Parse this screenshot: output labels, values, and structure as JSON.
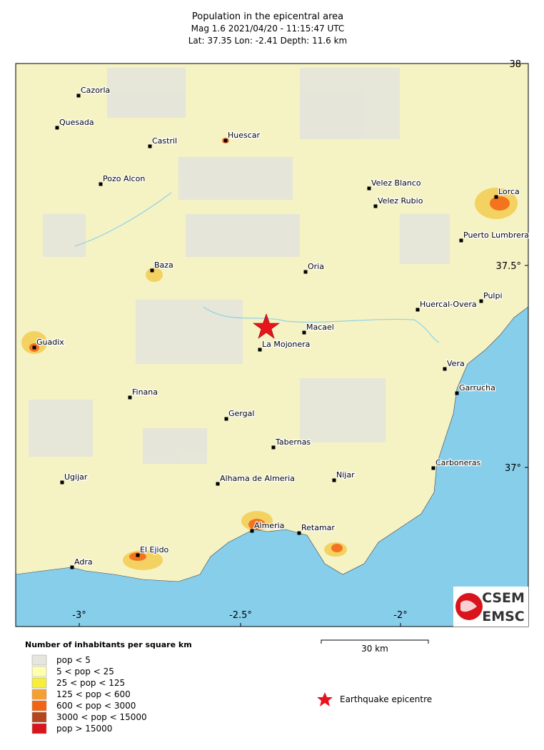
{
  "header": {
    "title": "Population in the epicentral area",
    "line1": "Mag 1.6  2021/04/20 - 11:15:47 UTC",
    "line2": "Lat: 37.35    Lon:  -2.41     Depth:  11.6 km"
  },
  "map": {
    "lon_ticks": [
      "-3°",
      "-2.5°",
      "-2°"
    ],
    "lat_ticks": [
      "38",
      "37.5°",
      "37°"
    ],
    "towns": [
      {
        "name": "Cazorla"
      },
      {
        "name": "Quesada"
      },
      {
        "name": "Castril"
      },
      {
        "name": "Huescar"
      },
      {
        "name": "Pozo Alcon"
      },
      {
        "name": "Velez Blanco"
      },
      {
        "name": "Velez Rubio"
      },
      {
        "name": "Lorca"
      },
      {
        "name": "Puerto Lumbrera"
      },
      {
        "name": "Baza"
      },
      {
        "name": "Oria"
      },
      {
        "name": "Pulpi"
      },
      {
        "name": "Huercal-Overa"
      },
      {
        "name": "Macael"
      },
      {
        "name": "La Mojonera"
      },
      {
        "name": "Guadix"
      },
      {
        "name": "Vera"
      },
      {
        "name": "Finana"
      },
      {
        "name": "Garrucha"
      },
      {
        "name": "Gergal"
      },
      {
        "name": "Tabernas"
      },
      {
        "name": "Carboneras"
      },
      {
        "name": "Ugijar"
      },
      {
        "name": "Alhama de Almeria"
      },
      {
        "name": "Nijar"
      },
      {
        "name": "Almeria"
      },
      {
        "name": "Retamar"
      },
      {
        "name": "El Ejido"
      },
      {
        "name": "Adra"
      }
    ]
  },
  "scale": {
    "label": "30 km"
  },
  "legend": {
    "title": "Number of inhabitants per square km",
    "items": [
      {
        "label": "pop < 5",
        "color": "#e6e6df"
      },
      {
        "label": "5 < pop < 25",
        "color": "#ffffb0"
      },
      {
        "label": "25 < pop < 125",
        "color": "#f6ee3c"
      },
      {
        "label": "125 < pop < 600",
        "color": "#f7a032"
      },
      {
        "label": "600 < pop < 3000",
        "color": "#f26313"
      },
      {
        "label": "3000 < pop < 15000",
        "color": "#b4451c"
      },
      {
        "label": "pop > 15000",
        "color": "#d9141c"
      }
    ]
  },
  "epicentre": {
    "label": "Earthquake epicentre"
  },
  "logo": {
    "top": "CSEM",
    "bottom": "EMSC"
  }
}
